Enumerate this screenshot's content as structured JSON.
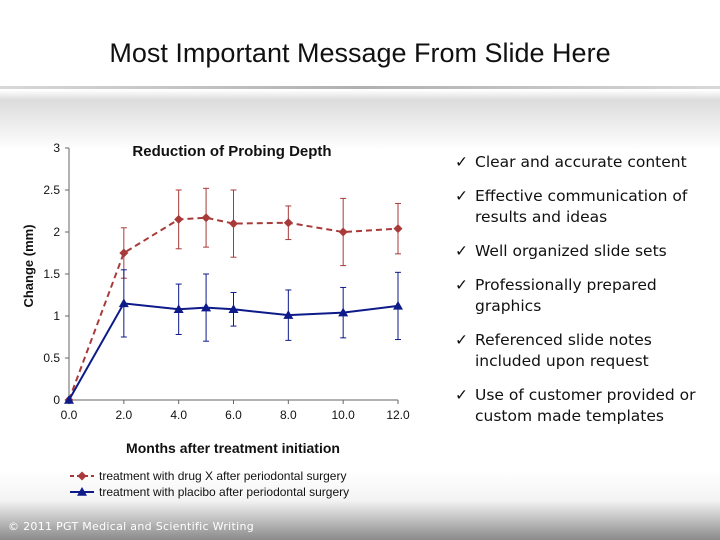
{
  "slide": {
    "title": "Most Important Message From Slide Here",
    "footer": "© 2011 PGT Medical and Scientific Writing"
  },
  "bullets": [
    "Clear and accurate content",
    "Effective communication of results and ideas",
    "Well organized slide sets",
    "Professionally prepared graphics",
    "Referenced slide notes included upon request",
    "Use of customer provided or custom made templates"
  ],
  "icons": {
    "bullet": "check-icon"
  },
  "chart_data": {
    "type": "line",
    "title": "Reduction of Probing Depth",
    "xlabel": "Months after treatment initiation",
    "ylabel": "Change (mm)",
    "xlim": [
      0,
      12
    ],
    "ylim": [
      0,
      3
    ],
    "x_ticks": [
      "0.0",
      "2.0",
      "4.0",
      "6.0",
      "8.0",
      "10.0",
      "12.0"
    ],
    "y_ticks": [
      "0",
      "0.5",
      "1",
      "1.5",
      "2",
      "2.5",
      "3"
    ],
    "grid": false,
    "legend_position": "bottom",
    "series": [
      {
        "name": "treatment with drug X after periodontal surgery",
        "color": "#a83a3a",
        "line_style": "dashed",
        "marker": "diamond",
        "x": [
          0,
          2,
          4,
          5,
          6,
          8,
          10,
          12
        ],
        "y": [
          0,
          1.75,
          2.15,
          2.17,
          2.1,
          2.11,
          2.0,
          2.04
        ],
        "err": [
          0,
          0.3,
          0.35,
          0.35,
          0.4,
          0.2,
          0.4,
          0.3
        ]
      },
      {
        "name": "treatment with placibo after periodontal surgery",
        "color": "#0d1a8a",
        "line_style": "solid",
        "marker": "triangle",
        "x": [
          0,
          2,
          4,
          5,
          6,
          8,
          10,
          12
        ],
        "y": [
          0,
          1.15,
          1.08,
          1.1,
          1.08,
          1.01,
          1.04,
          1.12
        ],
        "err": [
          0,
          0.4,
          0.3,
          0.4,
          0.2,
          0.3,
          0.3,
          0.4
        ]
      }
    ]
  }
}
